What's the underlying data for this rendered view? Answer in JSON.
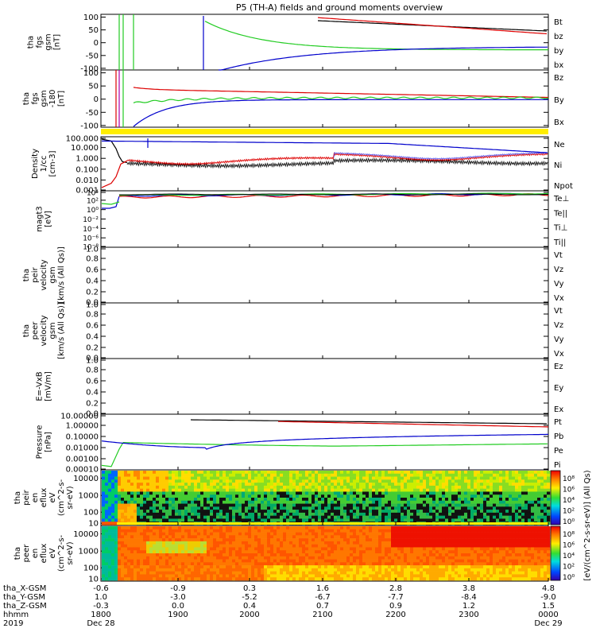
{
  "title": "P5 (TH-A) fields and ground moments overview",
  "colors": {
    "black": "#000000",
    "red": "#dd0000",
    "green": "#22cc22",
    "blue": "#0000cc",
    "yellow": "#ffee00"
  },
  "chart_data": [
    {
      "type": "line",
      "panel": "fgs_gsm",
      "ylabel": [
        "tha",
        "fgs",
        "gsm",
        "[nT]"
      ],
      "yticks": [
        "100",
        "50",
        "0",
        "-50",
        "-100"
      ],
      "legend": [
        {
          "name": "Bt",
          "color": "black"
        },
        {
          "name": "bz",
          "color": "red"
        },
        {
          "name": "by",
          "color": "green"
        },
        {
          "name": "bx",
          "color": "blue"
        }
      ]
    },
    {
      "type": "line",
      "panel": "fgs_gsm_clipped",
      "ylabel": [
        "tha",
        "fgs",
        "gsm",
        "-180",
        "[nT]"
      ],
      "yticks": [
        "100",
        "50",
        "0",
        "-50",
        "-100"
      ],
      "legend": [
        {
          "name": "Bz",
          "color": "red"
        },
        {
          "name": "By",
          "color": "green"
        },
        {
          "name": "Bx",
          "color": "blue"
        }
      ]
    },
    {
      "type": "line",
      "panel": "density",
      "yscale": "log",
      "ylabel": [
        "Density",
        "1/cc",
        "[cm-3]"
      ],
      "yticks": [
        "100.000",
        "10.000",
        "1.000",
        "0.100",
        "0.010",
        "0.001"
      ],
      "legend": [
        {
          "name": "Ne",
          "color": "red"
        },
        {
          "name": "Ni",
          "color": "black"
        },
        {
          "name": "Npot",
          "color": "blue"
        }
      ]
    },
    {
      "type": "line",
      "panel": "temperature",
      "yscale": "log",
      "ylabel": [
        "magt3",
        "[eV]"
      ],
      "yticks": [
        "10⁴",
        "10²",
        "10⁰",
        "10⁻²",
        "10⁻⁴",
        "10⁻⁶",
        "10⁻⁸"
      ],
      "legend": [
        {
          "name": "Te⊥",
          "color": "red"
        },
        {
          "name": "Te||",
          "color": "black"
        },
        {
          "name": "Ti⊥",
          "color": "green"
        },
        {
          "name": "Ti||",
          "color": "green"
        }
      ]
    },
    {
      "type": "line",
      "panel": "peir_velocity",
      "ylabel": [
        "tha",
        "peir",
        "velocity",
        "gsm",
        "[km/s (All Qs)]"
      ],
      "yticks": [
        "1.0",
        "0.8",
        "0.6",
        "0.4",
        "0.2",
        "0.0"
      ],
      "legend": [
        {
          "name": "Vt",
          "color": "black"
        },
        {
          "name": "Vz",
          "color": "red"
        },
        {
          "name": "Vy",
          "color": "green"
        },
        {
          "name": "Vx",
          "color": "blue"
        }
      ]
    },
    {
      "type": "line",
      "panel": "peer_velocity",
      "ylabel": [
        "tha",
        "peer",
        "velocity",
        "gsm",
        "[km/s (All Qs)]"
      ],
      "yticks": [
        "1.0",
        "0.8",
        "0.6",
        "0.4",
        "0.2",
        "0.0"
      ],
      "legend": [
        {
          "name": "Vt",
          "color": "black"
        },
        {
          "name": "Vz",
          "color": "red"
        },
        {
          "name": "Vy",
          "color": "green"
        },
        {
          "name": "Vx",
          "color": "blue"
        }
      ]
    },
    {
      "type": "line",
      "panel": "efield",
      "ylabel": [
        "E=-VxB",
        "[mV/m]"
      ],
      "yticks": [
        "1.0",
        "0.8",
        "0.6",
        "0.4",
        "0.2",
        "0.0"
      ],
      "legend": [
        {
          "name": "Ez",
          "color": "red"
        },
        {
          "name": "Ey",
          "color": "green"
        },
        {
          "name": "Ex",
          "color": "blue"
        }
      ]
    },
    {
      "type": "line",
      "panel": "pressure",
      "yscale": "log",
      "ylabel": [
        "Pressure",
        "[nPa]"
      ],
      "yticks": [
        "10.00000",
        "1.00000",
        "0.10000",
        "0.01000",
        "0.00100",
        "0.00010"
      ],
      "legend": [
        {
          "name": "Pt",
          "color": "black"
        },
        {
          "name": "Pb",
          "color": "red"
        },
        {
          "name": "Pe",
          "color": "green"
        },
        {
          "name": "Pi",
          "color": "blue"
        }
      ]
    },
    {
      "type": "heatmap",
      "panel": "peir_en_eflux",
      "ylabel": [
        "tha",
        "peir",
        "en",
        "eflux",
        "eV",
        "(cm^2-s-",
        "sr-eV)"
      ],
      "yticks": [
        "10000",
        "1000",
        "100",
        "10"
      ],
      "colorbar": [
        "10⁸",
        "10⁶",
        "10⁴",
        "10²",
        "10⁰"
      ]
    },
    {
      "type": "heatmap",
      "panel": "peer_en_eflux",
      "ylabel": [
        "tha",
        "peer",
        "en",
        "eflux",
        "eV",
        "(cm^2-s-",
        "sr-eV)"
      ],
      "yticks": [
        "10000",
        "1000",
        "100",
        "10"
      ],
      "colorbar": [
        "10⁸",
        "10⁶",
        "10⁴",
        "10²",
        "10⁰"
      ]
    }
  ],
  "colorbar_label": "[eV/(cm^2-s-sr-eV)] (All Qs)",
  "xaxis": {
    "row_labels": [
      "tha_X-GSM",
      "tha_Y-GSM",
      "tha_Z-GSM",
      "hhmm",
      "2019"
    ],
    "ticks": [
      {
        "x": "-0.6",
        "y": "1.0",
        "z": "-0.3",
        "t": "1800",
        "d": "Dec 28"
      },
      {
        "x": "-0.9",
        "y": "-3.0",
        "z": "0.0",
        "t": "1900",
        "d": ""
      },
      {
        "x": "0.3",
        "y": "-5.2",
        "z": "0.4",
        "t": "2000",
        "d": ""
      },
      {
        "x": "1.6",
        "y": "-6.7",
        "z": "0.7",
        "t": "2100",
        "d": ""
      },
      {
        "x": "2.8",
        "y": "-7.7",
        "z": "0.9",
        "t": "2200",
        "d": ""
      },
      {
        "x": "3.8",
        "y": "-8.4",
        "z": "1.2",
        "t": "2300",
        "d": ""
      },
      {
        "x": "4.8",
        "y": "-9.0",
        "z": "1.5",
        "t": "0000",
        "d": "Dec 29"
      }
    ]
  }
}
